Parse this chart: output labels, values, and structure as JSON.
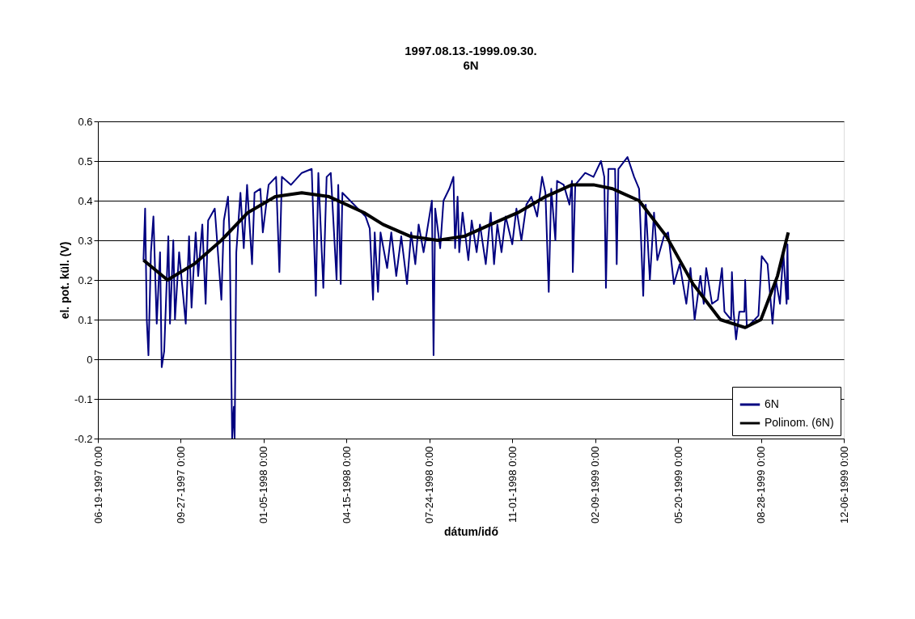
{
  "chart_data": {
    "type": "line",
    "title": "1997.08.13.-1999.09.30.",
    "subtitle": "6N",
    "xlabel": "dátum/idő",
    "ylabel": "el. pot. kül. (V)",
    "xlim": [
      "1997-06-19",
      "1999-12-06"
    ],
    "xticks": [
      {
        "value": "1997-06-19",
        "label": "06-19-1997 0:00"
      },
      {
        "value": "1997-09-27",
        "label": "09-27-1997 0:00"
      },
      {
        "value": "1998-01-05",
        "label": "01-05-1998 0:00"
      },
      {
        "value": "1998-04-15",
        "label": "04-15-1998 0:00"
      },
      {
        "value": "1998-07-24",
        "label": "07-24-1998 0:00"
      },
      {
        "value": "1998-11-01",
        "label": "11-01-1998 0:00"
      },
      {
        "value": "1999-02-09",
        "label": "02-09-1999 0:00"
      },
      {
        "value": "1999-05-20",
        "label": "05-20-1999 0:00"
      },
      {
        "value": "1999-08-28",
        "label": "08-28-1999 0:00"
      },
      {
        "value": "1999-12-06",
        "label": "12-06-1999 0:00"
      }
    ],
    "ylim": [
      -0.2,
      0.6
    ],
    "yticks": [
      -0.2,
      -0.1,
      0,
      0.1,
      0.2,
      0.3,
      0.4,
      0.5,
      0.6
    ],
    "grid": "y",
    "legend": "bottom right",
    "line_style": "solid",
    "series": [
      {
        "name": "6N",
        "color": "#000080",
        "x": [
          "1997-08-13",
          "1997-08-15",
          "1997-08-17",
          "1997-08-19",
          "1997-08-22",
          "1997-08-25",
          "1997-08-29",
          "1997-09-02",
          "1997-09-04",
          "1997-09-07",
          "1997-09-12",
          "1997-09-14",
          "1997-09-18",
          "1997-09-20",
          "1997-09-25",
          "1997-10-03",
          "1997-10-07",
          "1997-10-10",
          "1997-10-15",
          "1997-10-18",
          "1997-10-23",
          "1997-10-27",
          "1997-10-30",
          "1997-11-07",
          "1997-11-15",
          "1997-11-18",
          "1997-11-23",
          "1997-11-25",
          "1997-11-28",
          "1997-11-30",
          "1997-12-01",
          "1997-12-03",
          "1997-12-08",
          "1997-12-12",
          "1997-12-16",
          "1997-12-22",
          "1997-12-25",
          "1998-01-01",
          "1998-01-04",
          "1998-01-11",
          "1998-01-20",
          "1998-01-24",
          "1998-01-27",
          "1998-02-07",
          "1998-02-20",
          "1998-03-04",
          "1998-03-09",
          "1998-03-12",
          "1998-03-18",
          "1998-03-22",
          "1998-03-27",
          "1998-04-03",
          "1998-04-05",
          "1998-04-08",
          "1998-04-10",
          "1998-05-08",
          "1998-05-13",
          "1998-05-17",
          "1998-05-19",
          "1998-05-23",
          "1998-05-26",
          "1998-06-03",
          "1998-06-08",
          "1998-06-14",
          "1998-06-20",
          "1998-06-27",
          "1998-07-02",
          "1998-07-07",
          "1998-07-11",
          "1998-07-17",
          "1998-07-27",
          "1998-07-29",
          "1998-07-31",
          "1998-08-06",
          "1998-08-10",
          "1998-08-17",
          "1998-08-22",
          "1998-08-24",
          "1998-08-27",
          "1998-08-29",
          "1998-09-02",
          "1998-09-09",
          "1998-09-13",
          "1998-09-19",
          "1998-09-23",
          "1998-09-30",
          "1998-10-06",
          "1998-10-10",
          "1998-10-14",
          "1998-10-19",
          "1998-10-24",
          "1998-11-01",
          "1998-11-06",
          "1998-11-12",
          "1998-11-18",
          "1998-11-24",
          "1998-12-01",
          "1998-12-07",
          "1998-12-11",
          "1998-12-15",
          "1998-12-18",
          "1998-12-23",
          "1998-12-25",
          "1999-01-02",
          "1999-01-09",
          "1999-01-12",
          "1999-01-13",
          "1999-01-16",
          "1999-01-28",
          "1999-02-07",
          "1999-02-16",
          "1999-02-20",
          "1999-02-22",
          "1999-02-25",
          "1999-03-05",
          "1999-03-07",
          "1999-03-09",
          "1999-03-20",
          "1999-03-28",
          "1999-04-03",
          "1999-04-08",
          "1999-04-11",
          "1999-04-16",
          "1999-04-21",
          "1999-04-25",
          "1999-05-03",
          "1999-05-08",
          "1999-05-15",
          "1999-05-22",
          "1999-05-30",
          "1999-06-04",
          "1999-06-09",
          "1999-06-16",
          "1999-06-20",
          "1999-06-23",
          "1999-06-30",
          "1999-07-07",
          "1999-07-12",
          "1999-07-15",
          "1999-07-23",
          "1999-07-24",
          "1999-07-26",
          "1999-07-29",
          "1999-08-02",
          "1999-08-08",
          "1999-08-09",
          "1999-08-11",
          "1999-08-25",
          "1999-08-29",
          "1999-09-05",
          "1999-09-11",
          "1999-09-15",
          "1999-09-20",
          "1999-09-24",
          "1999-09-28",
          "1999-09-29",
          "1999-09-30"
        ],
        "values": [
          0.25,
          0.38,
          0.1,
          0.01,
          0.27,
          0.36,
          0.09,
          0.27,
          -0.02,
          0.02,
          0.31,
          0.09,
          0.3,
          0.1,
          0.27,
          0.09,
          0.31,
          0.13,
          0.32,
          0.21,
          0.34,
          0.14,
          0.35,
          0.38,
          0.15,
          0.35,
          0.41,
          0.31,
          -0.2,
          -0.12,
          -0.2,
          0.27,
          0.42,
          0.28,
          0.44,
          0.24,
          0.42,
          0.43,
          0.32,
          0.44,
          0.46,
          0.22,
          0.46,
          0.44,
          0.47,
          0.48,
          0.16,
          0.47,
          0.18,
          0.46,
          0.47,
          0.2,
          0.44,
          0.19,
          0.42,
          0.36,
          0.33,
          0.15,
          0.32,
          0.17,
          0.32,
          0.23,
          0.32,
          0.21,
          0.31,
          0.19,
          0.32,
          0.24,
          0.34,
          0.27,
          0.4,
          0.01,
          0.38,
          0.28,
          0.4,
          0.43,
          0.46,
          0.28,
          0.41,
          0.27,
          0.37,
          0.25,
          0.35,
          0.27,
          0.34,
          0.24,
          0.37,
          0.24,
          0.34,
          0.27,
          0.36,
          0.29,
          0.38,
          0.3,
          0.39,
          0.41,
          0.36,
          0.46,
          0.42,
          0.17,
          0.43,
          0.3,
          0.45,
          0.44,
          0.39,
          0.45,
          0.22,
          0.44,
          0.47,
          0.46,
          0.5,
          0.46,
          0.18,
          0.48,
          0.48,
          0.24,
          0.48,
          0.51,
          0.46,
          0.43,
          0.16,
          0.39,
          0.2,
          0.37,
          0.25,
          0.31,
          0.32,
          0.19,
          0.24,
          0.14,
          0.23,
          0.1,
          0.21,
          0.14,
          0.23,
          0.14,
          0.15,
          0.23,
          0.12,
          0.1,
          0.22,
          0.12,
          0.05,
          0.12,
          0.12,
          0.2,
          0.08,
          0.11,
          0.26,
          0.24,
          0.09,
          0.2,
          0.14,
          0.27,
          0.14,
          0.29,
          0.15
        ]
      },
      {
        "name": "Polinom. (6N)",
        "type": "line",
        "color": "#000000",
        "x": [
          "1997-08-13",
          "1997-09-11",
          "1997-10-13",
          "1997-11-15",
          "1997-12-17",
          "1998-01-19",
          "1998-02-20",
          "1998-03-25",
          "1998-05-06",
          "1998-05-29",
          "1998-07-01",
          "1998-08-03",
          "1998-09-04",
          "1998-10-06",
          "1998-11-08",
          "1998-12-11",
          "1999-01-12",
          "1999-02-07",
          "1999-03-02",
          "1999-04-03",
          "1999-05-06",
          "1999-06-07",
          "1999-07-10",
          "1999-08-09",
          "1999-08-28",
          "1999-09-17",
          "1999-09-30"
        ],
        "values": [
          0.25,
          0.2,
          0.24,
          0.3,
          0.37,
          0.41,
          0.42,
          0.41,
          0.37,
          0.34,
          0.31,
          0.3,
          0.31,
          0.34,
          0.37,
          0.41,
          0.44,
          0.44,
          0.43,
          0.4,
          0.31,
          0.19,
          0.1,
          0.08,
          0.1,
          0.21,
          0.32
        ]
      }
    ]
  }
}
